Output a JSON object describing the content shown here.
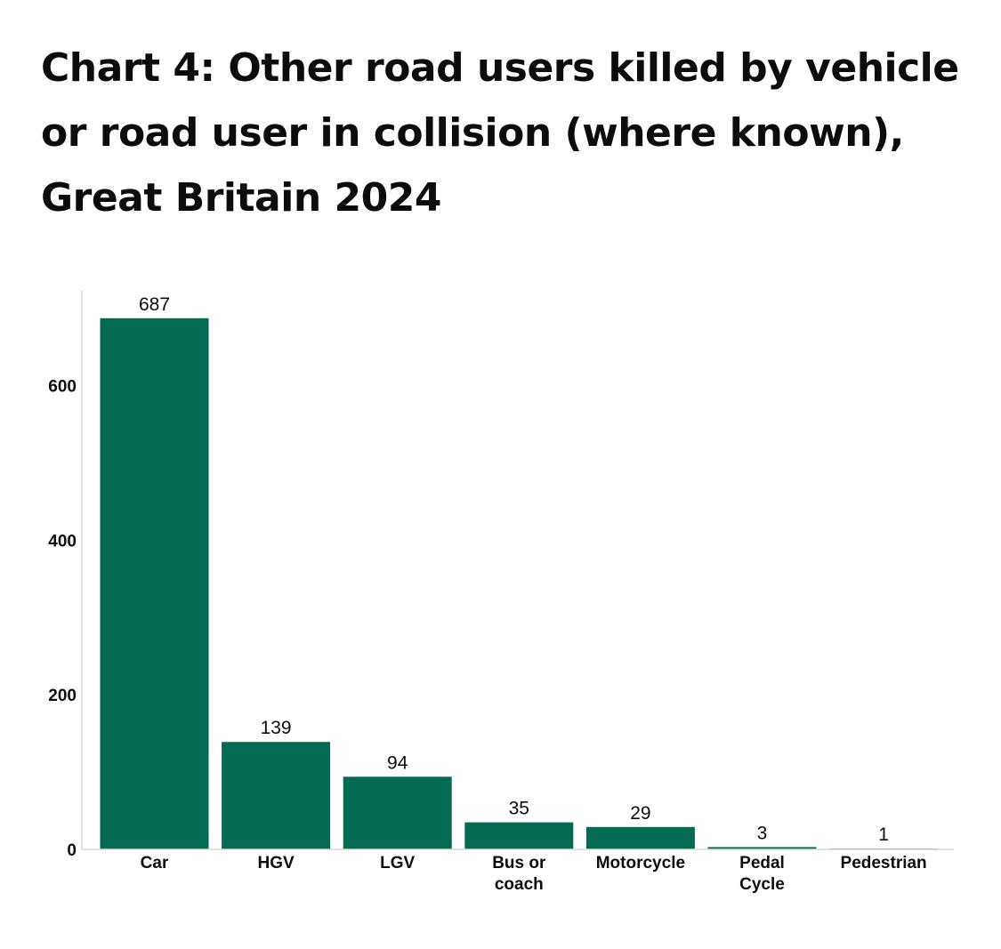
{
  "chart_data": {
    "type": "bar",
    "title": "Chart 4: Other road users killed by vehicle or road user in collision (where known), Great Britain 2024",
    "categories": [
      [
        "Car"
      ],
      [
        "HGV"
      ],
      [
        "LGV"
      ],
      [
        "Bus or",
        "coach"
      ],
      [
        "Motorcycle"
      ],
      [
        "Pedal",
        "Cycle"
      ],
      [
        "Pedestrian"
      ]
    ],
    "values": [
      687,
      139,
      94,
      35,
      29,
      3,
      1
    ],
    "data_labels": [
      "687",
      "139",
      "94",
      "35",
      "29",
      "3",
      "1"
    ],
    "yticks": [
      0,
      200,
      400,
      600
    ],
    "ytick_labels": [
      "0",
      "200",
      "400",
      "600"
    ],
    "ylim": [
      0,
      720
    ],
    "xlabel": "",
    "ylabel": "",
    "grid": false,
    "legend": "none",
    "colors": {
      "bar": "#046a52",
      "axis": "#d9d9d9",
      "text": "#0b0c0c"
    }
  }
}
